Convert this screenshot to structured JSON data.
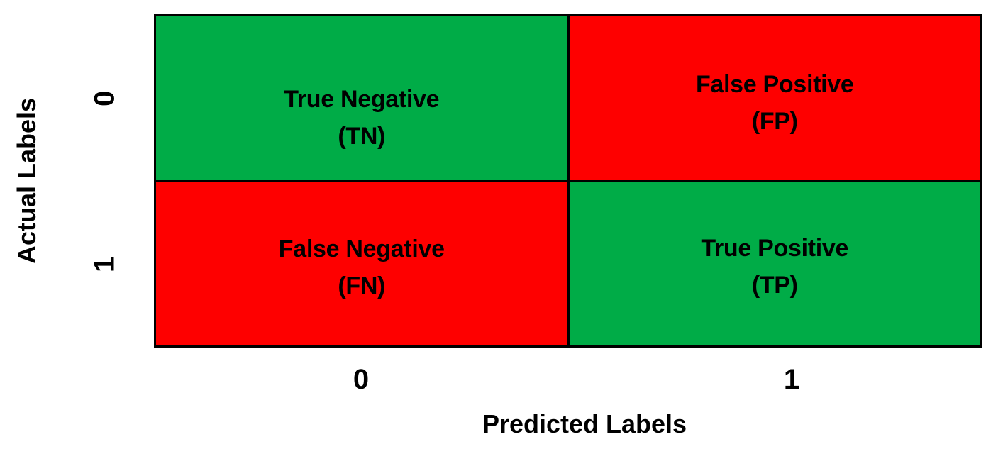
{
  "colors": {
    "correct_green": "#00AC47",
    "incorrect_red": "#FE0000",
    "grid_border": "#000000",
    "text": "#000000",
    "background": "#FFFFFF"
  },
  "y_axis": {
    "title": "Actual Labels",
    "ticks": [
      "0",
      "1"
    ]
  },
  "x_axis": {
    "title": "Predicted Labels",
    "ticks": [
      "0",
      "1"
    ]
  },
  "cells": [
    {
      "position": "top-left",
      "actual": "0",
      "predicted": "0",
      "label": "True Negative",
      "abbr": "(TN)",
      "color": "#00AC47"
    },
    {
      "position": "top-right",
      "actual": "0",
      "predicted": "1",
      "label": "False Positive",
      "abbr": "(FP)",
      "color": "#FE0000"
    },
    {
      "position": "bottom-left",
      "actual": "1",
      "predicted": "0",
      "label": "False Negative",
      "abbr": "(FN)",
      "color": "#FE0000"
    },
    {
      "position": "bottom-right",
      "actual": "1",
      "predicted": "1",
      "label": "True Positive",
      "abbr": "(TP)",
      "color": "#00AC47"
    }
  ]
}
